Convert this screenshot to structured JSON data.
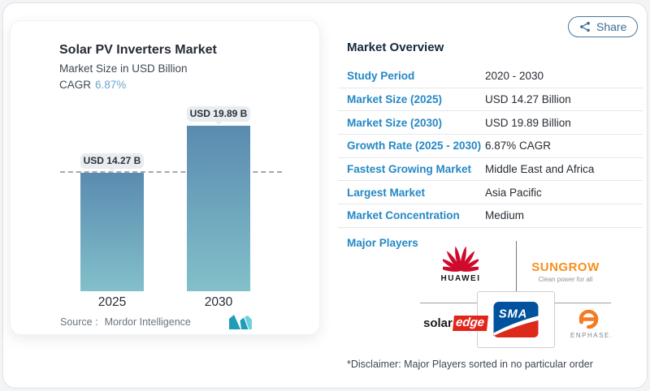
{
  "share": {
    "label": "Share",
    "icon": "share-nodes-icon"
  },
  "left_card": {
    "title": "Solar PV Inverters Market",
    "subtitle": "Market Size in USD Billion",
    "cagr_label": "CAGR",
    "cagr_value": "6.87%",
    "source_label": "Source :",
    "source_value": "Mordor Intelligence",
    "logo": "mordor-intelligence-m-icon"
  },
  "chart_data": {
    "type": "bar",
    "categories": [
      "2025",
      "2030"
    ],
    "values": [
      14.27,
      19.89
    ],
    "value_labels": [
      "USD 14.27 B",
      "USD 19.89 B"
    ],
    "title": "Solar PV Inverters Market",
    "ylabel": "Market Size in USD Billion",
    "cagr": "6.87%",
    "ylim": [
      0,
      19.89
    ],
    "grid": "off",
    "baseline_dashed_at": 14.27,
    "bar_gradient_top": "#5a8bb0",
    "bar_gradient_bottom": "#82c0ca"
  },
  "overview": {
    "heading": "Market Overview",
    "rows": [
      {
        "label": "Study Period",
        "value": "2020 - 2030"
      },
      {
        "label": "Market Size (2025)",
        "value": "USD 14.27 Billion"
      },
      {
        "label": "Market Size (2030)",
        "value": "USD 19.89 Billion"
      },
      {
        "label": "Growth Rate (2025 - 2030)",
        "value": "6.87% CAGR"
      },
      {
        "label": "Fastest Growing Market",
        "value": "Middle East and Africa"
      },
      {
        "label": "Largest Market",
        "value": "Asia Pacific"
      },
      {
        "label": "Market Concentration",
        "value": "Medium"
      }
    ],
    "major_players_label": "Major Players",
    "players": {
      "huawei": "HUAWEI",
      "sungrow": "SUNGROW",
      "sungrow_tagline": "Clean power for all",
      "solaredge_part1": "solar",
      "solaredge_part2": "edge",
      "sma": "SMA",
      "enphase": "ENPHASE."
    },
    "disclaimer": "*Disclaimer: Major Players sorted in no particular order"
  },
  "colors": {
    "accent_blue": "#2488c5",
    "heading_navy": "#15293f",
    "cagr_blue": "#69a5cd",
    "huawei_red": "#cf0a2c",
    "sungrow_orange": "#f78e1d",
    "solaredge_red": "#e1251b",
    "sma_blue": "#00519e",
    "sma_red": "#dd2a1b",
    "enphase_orange": "#f37b20",
    "mordor_teal": "#1e9cb8"
  }
}
